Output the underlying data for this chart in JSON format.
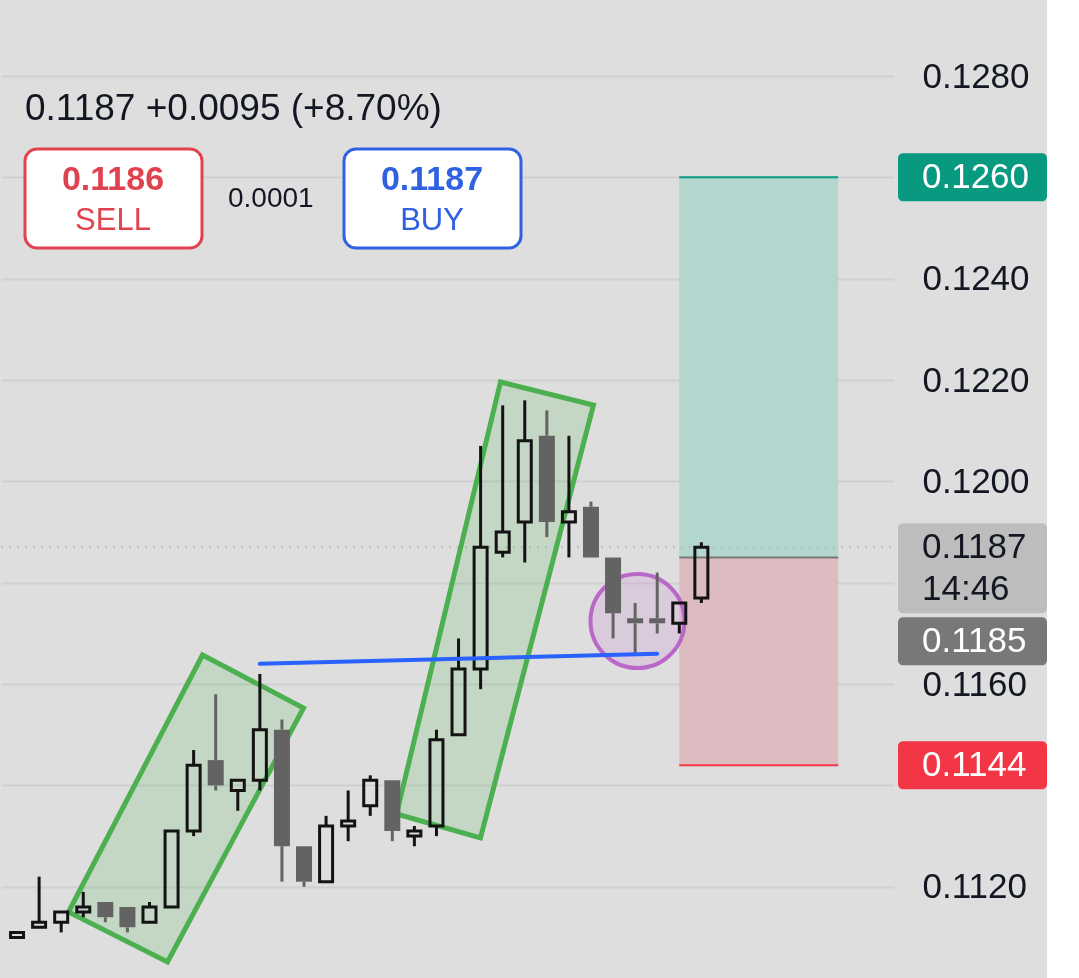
{
  "chart_data": {
    "type": "candlestick",
    "categories": [
      null,
      null,
      null,
      null,
      null,
      null,
      null,
      null,
      null,
      null,
      null,
      null,
      null,
      null,
      null,
      null,
      null,
      null,
      null,
      null,
      null,
      null,
      null,
      null,
      null,
      null,
      null,
      null,
      null,
      null,
      null,
      null,
      null,
      null,
      null,
      null,
      null,
      null,
      null,
      null
    ],
    "ohlc": [
      [
        0.111,
        0.1111,
        0.111,
        0.1111
      ],
      [
        0.1112,
        0.1122,
        0.1112,
        0.1113
      ],
      [
        0.1113,
        0.1115,
        0.1111,
        0.1115
      ],
      [
        0.1115,
        0.1119,
        0.1114,
        0.1116
      ],
      [
        0.1117,
        0.1117,
        0.1113,
        0.1114
      ],
      [
        0.1116,
        0.1116,
        0.1111,
        0.1112
      ],
      [
        0.1113,
        0.1117,
        0.1113,
        0.1116
      ],
      [
        0.1116,
        0.1131,
        0.1116,
        0.1131
      ],
      [
        0.1131,
        0.1147,
        0.113,
        0.1144
      ],
      [
        0.1145,
        0.1158,
        0.1139,
        0.114
      ],
      [
        0.1139,
        0.1141,
        0.1135,
        0.1141
      ],
      [
        0.1141,
        0.1162,
        0.1139,
        0.1151
      ],
      [
        0.1151,
        0.1153,
        0.1121,
        0.1128
      ],
      [
        0.1128,
        0.1128,
        0.112,
        0.1121
      ],
      [
        0.1121,
        0.1134,
        0.1121,
        0.1132
      ],
      [
        0.1132,
        0.1139,
        0.1129,
        0.1133
      ],
      [
        0.1136,
        0.1142,
        0.1134,
        0.1141
      ],
      [
        0.1141,
        0.1141,
        0.1129,
        0.1131
      ],
      [
        0.113,
        0.1132,
        0.1128,
        0.1131
      ],
      [
        0.1132,
        0.1151,
        0.113,
        0.1149
      ],
      [
        0.115,
        0.1169,
        0.115,
        0.1163
      ],
      [
        0.1163,
        0.1207,
        0.1159,
        0.1187
      ],
      [
        0.1186,
        0.1215,
        0.1185,
        0.119
      ],
      [
        0.1192,
        0.1216,
        0.1184,
        0.1208
      ],
      [
        0.1209,
        0.1214,
        0.1189,
        0.1192
      ],
      [
        0.1192,
        0.1209,
        0.1185,
        0.1194
      ],
      [
        0.1195,
        0.1196,
        0.1185,
        0.1185
      ],
      [
        0.1185,
        0.1185,
        0.1169,
        0.1174
      ],
      [
        0.1173,
        0.1176,
        0.1166,
        0.1172
      ],
      [
        0.1173,
        0.1182,
        0.117,
        0.1172
      ],
      [
        0.1172,
        0.1176,
        0.117,
        0.1176
      ],
      [
        0.1177,
        0.1188,
        0.1176,
        0.1187
      ],
      null,
      null,
      null,
      null,
      null,
      null,
      null,
      null
    ],
    "colors": [
      "#131313",
      "#131313",
      "#131313",
      "#131313",
      "#636363",
      "#636363",
      "#131313",
      "#131313",
      "#131313",
      "#636363",
      "#131313",
      "#131313",
      "#636363",
      "#636363",
      "#131313",
      "#131313",
      "#131313",
      "#636363",
      "#131313",
      "#131313",
      "#131313",
      "#131313",
      "#131313",
      "#131313",
      "#636363",
      "#131313",
      "#636363",
      "#636363",
      "#636363",
      "#636363",
      "#131313",
      "#131313",
      null,
      null,
      null,
      null,
      null,
      null,
      null,
      null
    ],
    "series": [
      {
        "type": "line",
        "color": "#2962ff",
        "values": [
          null,
          null,
          null,
          null,
          null,
          null,
          null,
          null,
          null,
          null,
          null,
          0.1164,
          null,
          null,
          null,
          null,
          null,
          null,
          null,
          null,
          null,
          null,
          null,
          null,
          null,
          null,
          null,
          null,
          null,
          0.1166,
          null,
          null,
          null,
          null,
          null,
          null,
          null,
          null,
          null,
          null
        ]
      }
    ],
    "ylim": [
      0.1102,
      0.1295
    ],
    "yticks": [
      {
        "value": 0.112,
        "label": "0.1120"
      },
      {
        "value": 0.114,
        "label": null
      },
      {
        "value": 0.116,
        "label": "0.1160"
      },
      {
        "value": 0.118,
        "label": null
      },
      {
        "value": 0.12,
        "label": "0.1200"
      },
      {
        "value": 0.122,
        "label": "0.1220"
      },
      {
        "value": 0.124,
        "label": "0.1240"
      },
      {
        "value": 0.126,
        "label": null
      },
      {
        "value": 0.128,
        "label": "0.1280"
      }
    ],
    "grid": "y",
    "tick_labels": "y",
    "bands": [
      {
        "axis": "y",
        "from": 0.1185,
        "to": 0.126,
        "color": "#b3d6cf"
      },
      {
        "axis": "y",
        "from": 0.1185,
        "to": 0.1144,
        "color": "#dcbcc0"
      }
    ],
    "ref_lines": [
      {
        "axis": "y",
        "value": 0.126,
        "label": "0.1260",
        "color": "#089981"
      },
      {
        "axis": "y",
        "value": 0.1187,
        "label": "0.1187\n14:46",
        "color": "#bdbdbd",
        "line_style": "dotted"
      },
      {
        "axis": "y",
        "value": 0.1185,
        "label": "0.1185",
        "color": "#787878"
      },
      {
        "axis": "y",
        "value": 0.1144,
        "label": "0.1144",
        "color": "#f23645"
      }
    ],
    "annotations": [
      "0.1187 +0.0095 (+8.70%)",
      "0.1186",
      "SELL",
      "0.0001",
      "0.1187",
      "BUY"
    ]
  }
}
